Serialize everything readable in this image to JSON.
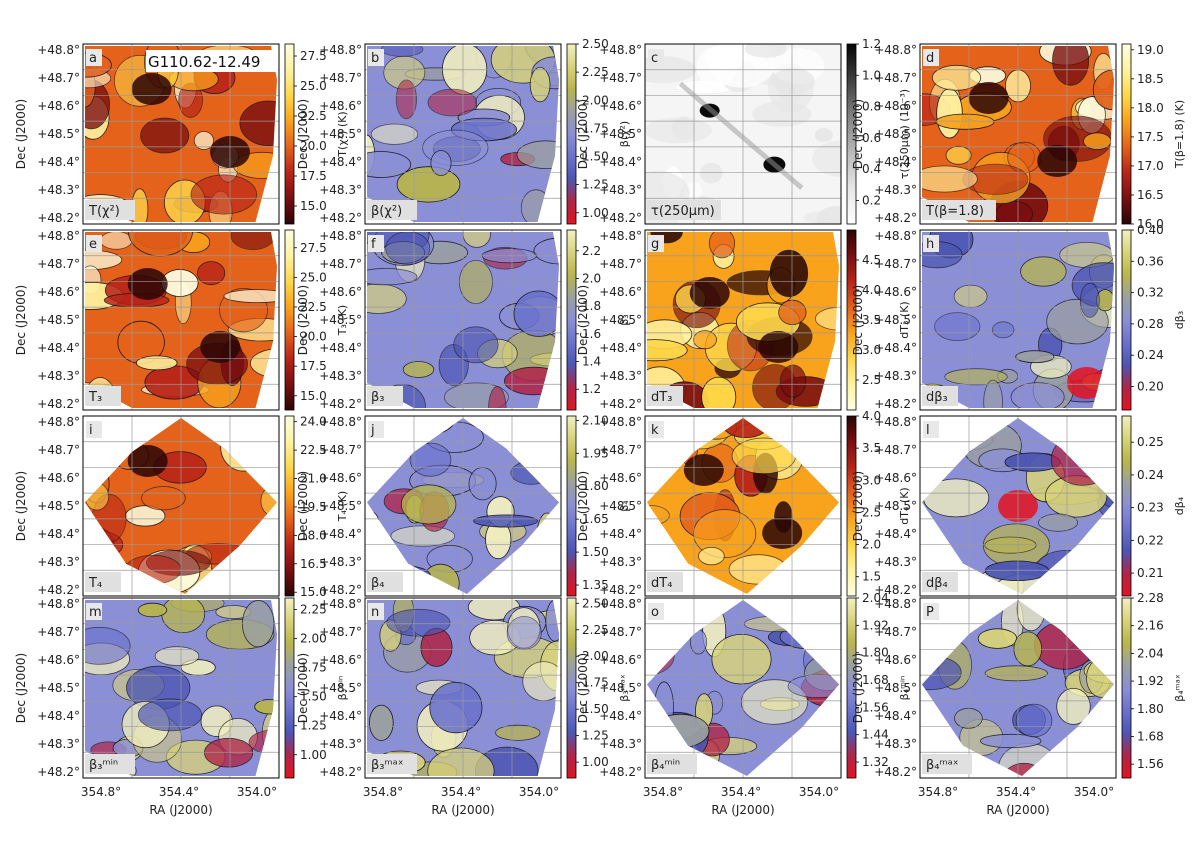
{
  "figure": {
    "title": "G110.62-12.49",
    "xlabel": "RA (J2000)",
    "ylabel": "Dec (J2000)",
    "x_ticks": [
      "354.8°",
      "354.4°",
      "354.0°"
    ],
    "y_ticks": [
      "+48.8°",
      "+48.7°",
      "+48.6°",
      "+48.5°",
      "+48.4°",
      "+48.3°",
      "+48.2°"
    ]
  },
  "chart_data": [
    {
      "type": "heatmap",
      "panel": "a",
      "label": "T(χ²)",
      "cmap": "hot",
      "shape": "irregular",
      "cbar_label": "T(χ²) (K)",
      "cbar_range": [
        13.5,
        28.5
      ],
      "cbar_ticks": [
        "27.5",
        "25.0",
        "22.5",
        "20.0",
        "17.5",
        "15.0"
      ],
      "dark_spots": [
        [
          0.35,
          0.25
        ],
        [
          0.75,
          0.6
        ]
      ]
    },
    {
      "type": "heatmap",
      "panel": "b",
      "label": "β(χ²)",
      "cmap": "beta",
      "shape": "irregular",
      "cbar_label": "β(χ²)",
      "cbar_range": [
        0.9,
        2.5
      ],
      "cbar_ticks": [
        "2.50",
        "2.25",
        "2.00",
        "1.75",
        "1.50",
        "1.25",
        "1.00"
      ]
    },
    {
      "type": "heatmap",
      "panel": "c",
      "label": "τ(250μm)",
      "cmap": "grey",
      "shape": "rect",
      "cbar_label": "τ(250μm) (10⁻³)",
      "cbar_range": [
        0.05,
        1.2
      ],
      "cbar_ticks": [
        "1.2",
        "1.0",
        "0.8",
        "0.6",
        "0.4",
        "0.2"
      ]
    },
    {
      "type": "heatmap",
      "panel": "d",
      "label": "T(β=1.8)",
      "cmap": "hot",
      "shape": "irregular",
      "cbar_label": "T(β=1.8) (K)",
      "cbar_range": [
        16.0,
        19.1
      ],
      "cbar_ticks": [
        "19.0",
        "18.5",
        "18.0",
        "17.5",
        "17.0",
        "16.5",
        "16.0"
      ],
      "dark_spots": [
        [
          0.35,
          0.3
        ],
        [
          0.7,
          0.65
        ]
      ]
    },
    {
      "type": "heatmap",
      "panel": "e",
      "label": "T₃",
      "cmap": "hot",
      "shape": "irregular",
      "cbar_label": "T₃ (K)",
      "cbar_range": [
        13.8,
        29.0
      ],
      "cbar_ticks": [
        "27.5",
        "25.0",
        "22.5",
        "20.0",
        "17.5",
        "15.0"
      ],
      "dark_spots": [
        [
          0.33,
          0.3
        ],
        [
          0.7,
          0.65
        ]
      ]
    },
    {
      "type": "heatmap",
      "panel": "f",
      "label": "β₃",
      "cmap": "beta",
      "shape": "irregular",
      "cbar_label": "β₃",
      "cbar_range": [
        1.05,
        2.35
      ],
      "cbar_ticks": [
        "2.2",
        "2.0",
        "1.8",
        "1.6",
        "1.4",
        "1.2"
      ]
    },
    {
      "type": "heatmap",
      "panel": "g",
      "label": "dT₃",
      "cmap": "hot_r",
      "shape": "irregular",
      "cbar_label": "dT₃ (K)",
      "cbar_range": [
        2.0,
        5.0
      ],
      "cbar_ticks": [
        "4.5",
        "4.0",
        "3.5",
        "3.0",
        "2.5"
      ],
      "dark_spots": [
        [
          0.33,
          0.35
        ],
        [
          0.68,
          0.65
        ]
      ]
    },
    {
      "type": "heatmap",
      "panel": "h",
      "label": "dβ₃",
      "cmap": "beta",
      "shape": "irregular",
      "cbar_label": "dβ₃",
      "cbar_range": [
        0.17,
        0.4
      ],
      "cbar_ticks": [
        "0.40",
        "0.36",
        "0.32",
        "0.28",
        "0.24",
        "0.20"
      ],
      "dark_spots": [
        [
          0.85,
          0.85
        ]
      ]
    },
    {
      "type": "heatmap",
      "panel": "i",
      "label": "T₄",
      "cmap": "hot",
      "shape": "diamond",
      "cbar_label": "T₄ (K)",
      "cbar_range": [
        14.8,
        24.3
      ],
      "cbar_ticks": [
        "24.0",
        "22.5",
        "21.0",
        "19.5",
        "18.0",
        "16.5",
        "15.0"
      ],
      "dark_spots": [
        [
          0.33,
          0.25
        ]
      ]
    },
    {
      "type": "heatmap",
      "panel": "j",
      "label": "β₄",
      "cmap": "beta",
      "shape": "diamond",
      "cbar_label": "β₄",
      "cbar_range": [
        1.3,
        2.12
      ],
      "cbar_ticks": [
        "2.10",
        "1.95",
        "1.80",
        "1.65",
        "1.50",
        "1.35"
      ]
    },
    {
      "type": "heatmap",
      "panel": "k",
      "label": "dT₄",
      "cmap": "hot_r",
      "shape": "diamond",
      "cbar_label": "dT₄ (K)",
      "cbar_range": [
        1.2,
        4.0
      ],
      "cbar_ticks": [
        "4.0",
        "3.5",
        "3.0",
        "2.5",
        "2.0",
        "1.5"
      ],
      "dark_spots": [
        [
          0.3,
          0.3
        ],
        [
          0.7,
          0.65
        ]
      ]
    },
    {
      "type": "heatmap",
      "panel": "l",
      "label": "dβ₄",
      "cmap": "beta",
      "shape": "diamond",
      "cbar_label": "dβ₄",
      "cbar_range": [
        0.203,
        0.258
      ],
      "cbar_ticks": [
        "0.25",
        "0.24",
        "0.23",
        "0.22",
        "0.21"
      ],
      "dark_spots": [
        [
          0.5,
          0.5
        ]
      ]
    },
    {
      "type": "heatmap",
      "panel": "m",
      "label": "β₃ᵐⁱⁿ",
      "cmap": "beta",
      "shape": "irregular",
      "cbar_label": "β₃ᵐⁱⁿ",
      "cbar_range": [
        0.8,
        2.35
      ],
      "cbar_ticks": [
        "2.25",
        "2.00",
        "1.75",
        "1.50",
        "1.25",
        "1.00"
      ]
    },
    {
      "type": "heatmap",
      "panel": "n",
      "label": "β₃ᵐᵃˣ",
      "cmap": "beta",
      "shape": "irregular",
      "cbar_label": "β₃ᵐᵃˣ",
      "cbar_range": [
        0.85,
        2.55
      ],
      "cbar_ticks": [
        "2.50",
        "2.25",
        "2.00",
        "1.75",
        "1.50",
        "1.25",
        "1.00"
      ]
    },
    {
      "type": "heatmap",
      "panel": "o",
      "label": "β₄ᵐⁱⁿ",
      "cmap": "beta",
      "shape": "diamond",
      "cbar_label": "β₄ᵐⁱⁿ",
      "cbar_range": [
        1.25,
        2.04
      ],
      "cbar_ticks": [
        "2.04",
        "1.92",
        "1.80",
        "1.68",
        "1.56",
        "1.44",
        "1.32"
      ]
    },
    {
      "type": "heatmap",
      "panel": "P",
      "label": "β₄ᵐᵃˣ",
      "cmap": "beta",
      "shape": "diamond",
      "cbar_label": "β₄ᵐᵃˣ",
      "cbar_range": [
        1.5,
        2.28
      ],
      "cbar_ticks": [
        "2.28",
        "2.16",
        "2.04",
        "1.92",
        "1.80",
        "1.68",
        "1.56"
      ]
    }
  ]
}
